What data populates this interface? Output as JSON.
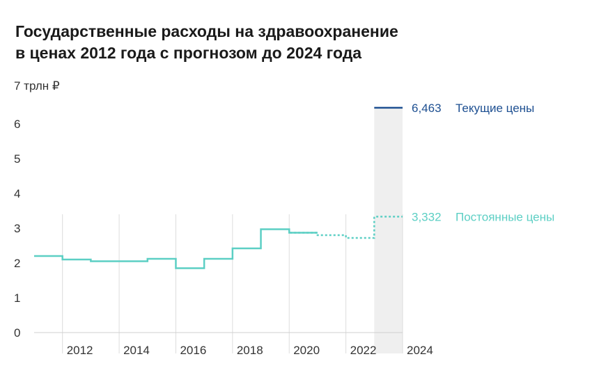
{
  "title_lines": [
    "Государственные расходы на здравоохранение",
    "в ценах 2012 года с прогнозом до 2024 года"
  ],
  "colors": {
    "constant": "#5ccfc4",
    "current": "#1d4f91",
    "forecast_band": "#efefef",
    "grid": "#dcdcdc"
  },
  "chart_data": {
    "type": "line",
    "title": "Государственные расходы на здравоохранение в ценах 2012 года с прогнозом до 2024 года",
    "ylabel": "",
    "y_top_label": "7 трлн ₽",
    "ylim": [
      0,
      7
    ],
    "yticks": [
      "0",
      "1",
      "2",
      "3",
      "4",
      "5",
      "6"
    ],
    "xlim": [
      2011,
      2024
    ],
    "xticks": [
      "2012",
      "2014",
      "2016",
      "2018",
      "2020",
      "2022",
      "2024"
    ],
    "step_style": "step-post",
    "forecast_band": [
      2023,
      2024
    ],
    "grid": "vertical",
    "series": [
      {
        "name": "Постоянные цены",
        "x": [
          2011,
          2012,
          2013,
          2014,
          2015,
          2016,
          2017,
          2018,
          2019,
          2020,
          2021,
          2022,
          2023,
          2024
        ],
        "y": [
          2.2,
          2.1,
          2.05,
          2.05,
          2.12,
          1.85,
          2.12,
          2.42,
          2.97,
          2.87,
          2.8,
          2.72,
          3.332,
          3.332
        ],
        "solid_until": 2020,
        "value_label": "3,332"
      },
      {
        "name": "Текущие цены",
        "x": [
          2023,
          2024
        ],
        "y": [
          6.463,
          6.463
        ],
        "value_label": "6,463"
      }
    ]
  }
}
